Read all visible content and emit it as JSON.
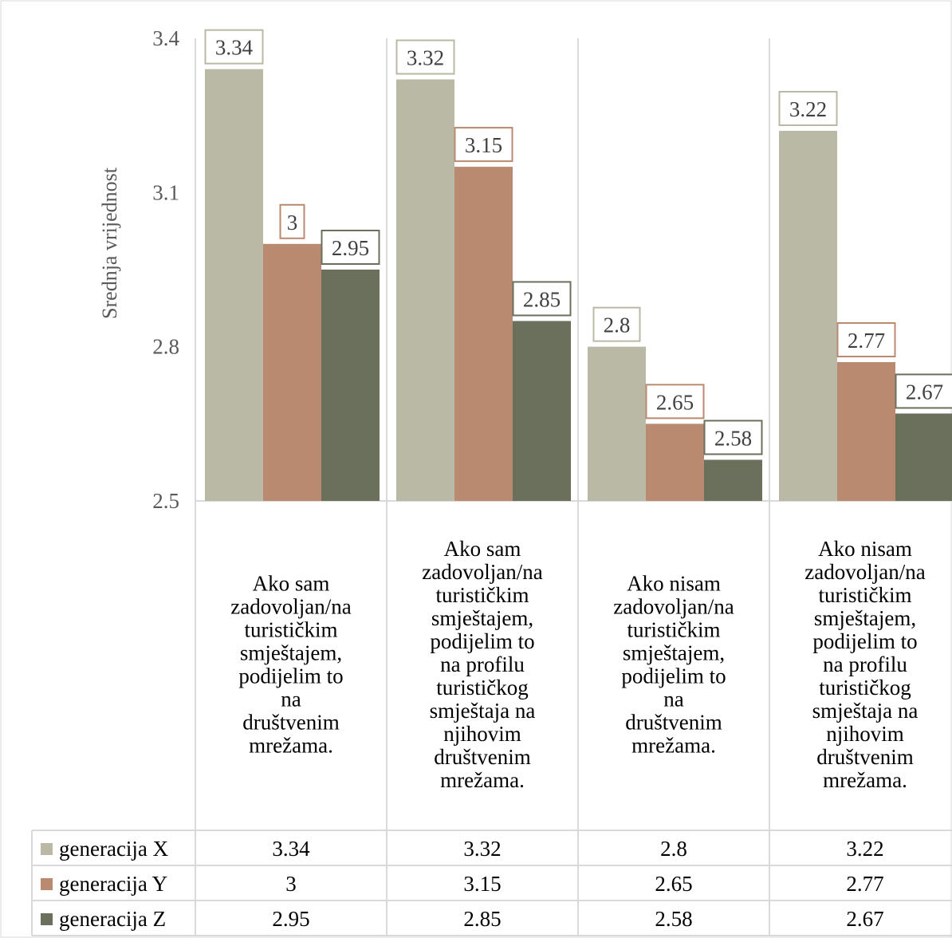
{
  "chart_data": {
    "type": "bar",
    "ylabel": "Srednja vrijednost",
    "ylim": [
      2.5,
      3.4
    ],
    "yticks": [
      "2.5",
      "2.8",
      "3.1",
      "3.4"
    ],
    "categories": [
      [
        "Ako sam",
        "zadovoljan/na",
        "turističkim",
        "smještajem,",
        "podijelim to",
        "na",
        "društvenim",
        "mrežama."
      ],
      [
        "Ako sam",
        "zadovoljan/na",
        "turističkim",
        "smještajem,",
        "podijelim to",
        "na profilu",
        "turističkog",
        "smještaja na",
        "njihovim",
        "društvenim",
        "mrežama."
      ],
      [
        "Ako nisam",
        "zadovoljan/na",
        "turističkim",
        "smještajem,",
        "podijelim to",
        "na",
        "društvenim",
        "mrežama."
      ],
      [
        "Ako nisam",
        "zadovoljan/na",
        "turističkim",
        "smještajem,",
        "podijelim to",
        "na profilu",
        "turističkog",
        "smještaja na",
        "njihovim",
        "društvenim",
        "mrežama."
      ]
    ],
    "series": [
      {
        "name": "generacija X",
        "color": "#b9b9a6",
        "values": [
          3.34,
          3.32,
          2.8,
          3.22
        ],
        "labels": [
          "3.34",
          "3.32",
          "2.8",
          "3.22"
        ]
      },
      {
        "name": "generacija Y",
        "color": "#b98a70",
        "values": [
          3.0,
          3.15,
          2.65,
          2.77
        ],
        "labels": [
          "3",
          "3.15",
          "2.65",
          "2.77"
        ]
      },
      {
        "name": "generacija Z",
        "color": "#6b705c",
        "values": [
          2.95,
          2.85,
          2.58,
          2.67
        ],
        "labels": [
          "2.95",
          "2.85",
          "2.58",
          "2.67"
        ]
      }
    ],
    "legend": "data-table",
    "grid": "vertical category separators"
  }
}
